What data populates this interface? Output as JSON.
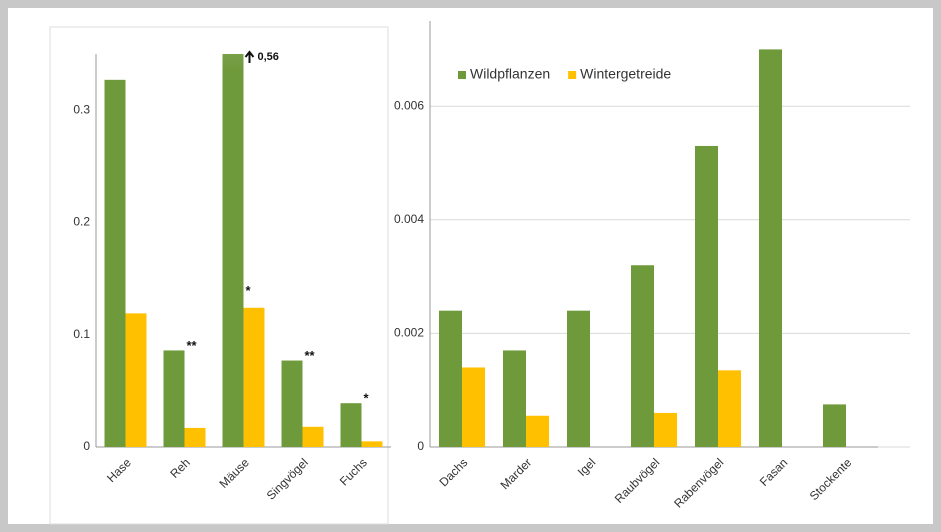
{
  "chart_data": [
    {
      "type": "bar",
      "categories": [
        "Hase",
        "Reh",
        "Mäuse",
        "Singvögel",
        "Fuchs"
      ],
      "series": [
        {
          "color": "#6f9a3c",
          "values": [
            0.327,
            0.086,
            0.56,
            0.077,
            0.039
          ],
          "value_labels": [
            null,
            null,
            "0,56",
            null,
            null
          ]
        },
        {
          "color": "#ffc000",
          "values": [
            0.119,
            0.017,
            0.124,
            0.018,
            0.005
          ]
        }
      ],
      "significance": [
        null,
        "**",
        "*",
        "**",
        "*"
      ],
      "ylim": [
        0,
        0.35
      ],
      "yticks": [
        0,
        0.1,
        0.2,
        0.3
      ],
      "grid": false
    },
    {
      "type": "bar",
      "categories": [
        "Dachs",
        "Marder",
        "Igel",
        "Raubvögel",
        "Rabenvögel",
        "Fasan",
        "Stockente"
      ],
      "series": [
        {
          "name": "Wildpflanzen",
          "color": "#6f9a3c",
          "values": [
            0.0024,
            0.0017,
            0.0024,
            0.0032,
            0.0053,
            0.007,
            0.00075
          ]
        },
        {
          "name": "Wintergetreide",
          "color": "#ffc000",
          "values": [
            0.0014,
            0.00055,
            null,
            0.0006,
            0.00135,
            null,
            null
          ]
        }
      ],
      "ylim": [
        0,
        0.0075
      ],
      "yticks": [
        0,
        0.002,
        0.004,
        0.006
      ],
      "grid": true,
      "legend": "top-left"
    }
  ]
}
